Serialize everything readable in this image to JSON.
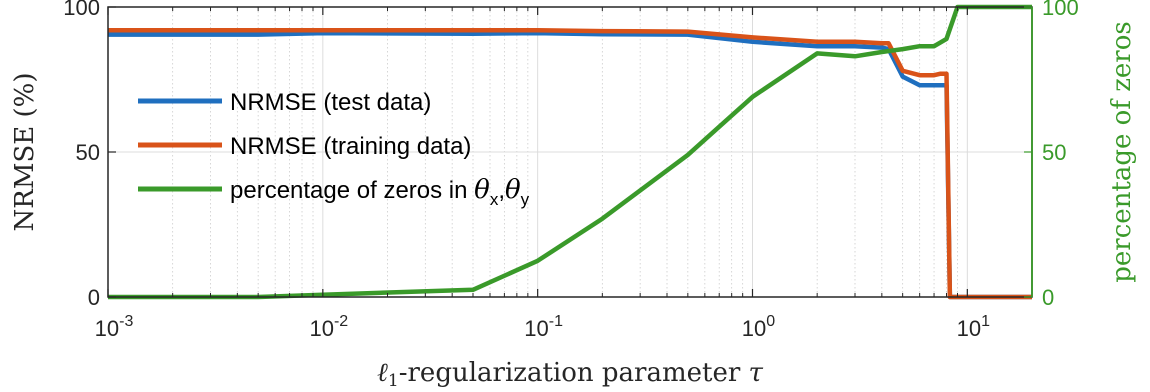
{
  "chart_data": {
    "type": "line",
    "xscale": "log",
    "xlim": [
      0.001,
      20
    ],
    "xticks": [
      0.001,
      0.01,
      0.1,
      1,
      10
    ],
    "xtick_labels": [
      {
        "base": "10",
        "exp": "-3"
      },
      {
        "base": "10",
        "exp": "-2"
      },
      {
        "base": "10",
        "exp": "-1"
      },
      {
        "base": "10",
        "exp": "0"
      },
      {
        "base": "10",
        "exp": "1"
      }
    ],
    "xlabel": {
      "prefix": "ℓ",
      "sub": "1",
      "rest": "-regularization parameter ",
      "symbol": "τ"
    },
    "y_left": {
      "label": "NRMSE (%)",
      "lim": [
        0,
        100
      ],
      "ticks": [
        0,
        50,
        100
      ],
      "tick_labels": [
        "0",
        "50",
        "100"
      ]
    },
    "y_right": {
      "label": "percentage of zeros",
      "lim": [
        0,
        100
      ],
      "ticks": [
        0,
        50,
        100
      ],
      "tick_labels": [
        "0",
        "50",
        "100"
      ],
      "color": "#3a9a2a"
    },
    "grid": true,
    "legend_location": "center-left",
    "series": [
      {
        "name": "NRMSE (test data)",
        "axis": "left",
        "color": "#1f6fbf",
        "x": [
          0.001,
          0.005,
          0.01,
          0.05,
          0.1,
          0.2,
          0.5,
          1,
          2,
          3,
          4,
          4.3,
          5,
          6,
          7,
          7.5,
          8,
          8.3,
          9,
          10,
          20
        ],
        "y": [
          90.5,
          90.5,
          91,
          90.8,
          91,
          90.6,
          90.5,
          88,
          86.5,
          86.5,
          86,
          85.5,
          76,
          73,
          73,
          73,
          73,
          0,
          0,
          0,
          0
        ]
      },
      {
        "name": "NRMSE (training data)",
        "axis": "left",
        "color": "#d95319",
        "x": [
          0.001,
          0.005,
          0.01,
          0.05,
          0.1,
          0.2,
          0.5,
          1,
          2,
          3,
          4,
          4.3,
          5,
          6,
          7,
          7.5,
          8,
          8.3,
          9,
          10,
          20
        ],
        "y": [
          92,
          92,
          92,
          92,
          92,
          91.7,
          91.5,
          89.5,
          88,
          88,
          87.5,
          87.5,
          78,
          76.5,
          76.5,
          77,
          77,
          0,
          0,
          0,
          0
        ]
      },
      {
        "name_prefix": "percentage of zeros in ",
        "name_symbols": [
          {
            "base": "θ",
            "sub": "x"
          },
          {
            "base": "θ",
            "sub": "y"
          }
        ],
        "axis": "right",
        "color": "#3a9a2a",
        "x": [
          0.001,
          0.005,
          0.01,
          0.05,
          0.1,
          0.2,
          0.5,
          1,
          2,
          3,
          4,
          5,
          6,
          7,
          8,
          9,
          10,
          20
        ],
        "y": [
          0,
          0,
          0.8,
          2.5,
          12.5,
          27,
          49,
          69,
          84,
          83,
          84.5,
          85.5,
          86.5,
          86.5,
          89,
          100,
          100,
          100
        ]
      }
    ]
  }
}
